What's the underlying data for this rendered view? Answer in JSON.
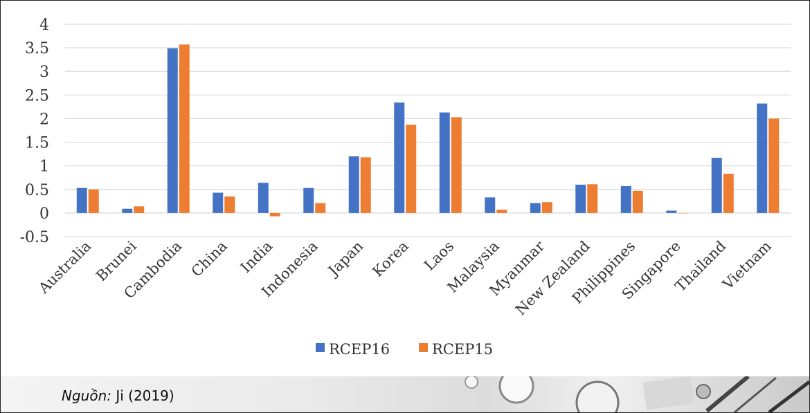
{
  "chart_data": {
    "type": "bar",
    "title": "",
    "xlabel": "",
    "ylabel": "",
    "ylim": [
      -0.5,
      4
    ],
    "yticks": [
      "4",
      "3.5",
      "3",
      "2.5",
      "2",
      "1.5",
      "1",
      "0.5",
      "0",
      "-0.5"
    ],
    "grid": true,
    "legend_position": "bottom",
    "categories": [
      "Australia",
      "Brunei",
      "Cambodia",
      "China",
      "India",
      "Indonesia",
      "Japan",
      "Korea",
      "Laos",
      "Malaysia",
      "Myanmar",
      "New Zealand",
      "Philippines",
      "Singapore",
      "Thailand",
      "Vietnam"
    ],
    "series": [
      {
        "name": "RCEP16",
        "color": "#4472c4",
        "values": [
          0.53,
          0.09,
          3.49,
          0.43,
          0.64,
          0.53,
          1.2,
          2.34,
          2.13,
          0.33,
          0.21,
          0.6,
          0.57,
          0.05,
          1.17,
          2.32
        ]
      },
      {
        "name": "RCEP15",
        "color": "#ed7d31",
        "values": [
          0.5,
          0.14,
          3.57,
          0.35,
          -0.07,
          0.21,
          1.18,
          1.87,
          2.03,
          0.07,
          0.23,
          0.61,
          0.47,
          0.0,
          0.83,
          2.0
        ]
      }
    ]
  },
  "source": {
    "label": "Nguồn:",
    "text": "Ji (2019)"
  }
}
